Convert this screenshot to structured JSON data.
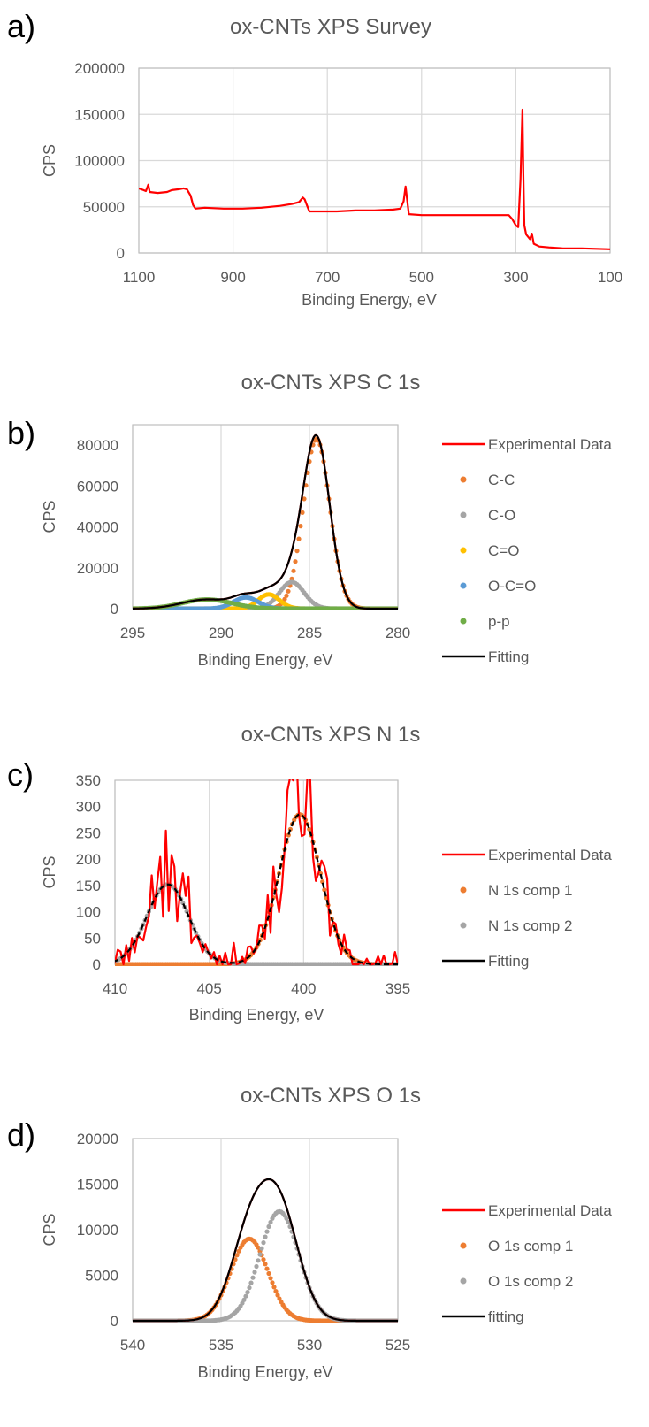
{
  "colors": {
    "experimental": "#ff0000",
    "comp_orange": "#ed7d31",
    "comp_gray": "#a5a5a5",
    "comp_yellow": "#ffc000",
    "comp_blue": "#5b9bd5",
    "comp_green": "#70ad47",
    "fitting": "#000000",
    "grid": "#d9d9d9",
    "text": "#595959"
  },
  "chart_data": [
    {
      "panel": "a)",
      "type": "line",
      "title": "ox-CNTs XPS Survey",
      "xlabel": "Binding Energy, eV",
      "ylabel": "CPS",
      "xlim": [
        1100,
        100
      ],
      "ylim": [
        0,
        200000
      ],
      "x_reversed": true,
      "xticks": [
        "1100",
        "900",
        "700",
        "500",
        "300",
        "100"
      ],
      "yticks": [
        "0",
        "50000",
        "100000",
        "150000",
        "200000"
      ],
      "grid": "both",
      "legend": "none",
      "series": [
        {
          "style": "line",
          "color_key": "experimental",
          "points": [
            [
              1100,
              70000
            ],
            [
              1090,
              68000
            ],
            [
              1085,
              67000
            ],
            [
              1080,
              74000
            ],
            [
              1077,
              66000
            ],
            [
              1060,
              65000
            ],
            [
              1040,
              66000
            ],
            [
              1030,
              68000
            ],
            [
              1015,
              69000
            ],
            [
              1005,
              70000
            ],
            [
              998,
              69000
            ],
            [
              990,
              62000
            ],
            [
              985,
              52000
            ],
            [
              980,
              48000
            ],
            [
              960,
              49000
            ],
            [
              920,
              48000
            ],
            [
              880,
              48000
            ],
            [
              840,
              49000
            ],
            [
              800,
              51000
            ],
            [
              775,
              53000
            ],
            [
              760,
              55000
            ],
            [
              752,
              60000
            ],
            [
              748,
              58000
            ],
            [
              742,
              50000
            ],
            [
              738,
              45000
            ],
            [
              720,
              45000
            ],
            [
              680,
              45000
            ],
            [
              640,
              46000
            ],
            [
              600,
              46000
            ],
            [
              560,
              47000
            ],
            [
              545,
              48000
            ],
            [
              538,
              56000
            ],
            [
              534,
              72000
            ],
            [
              530,
              55000
            ],
            [
              527,
              42000
            ],
            [
              500,
              41000
            ],
            [
              460,
              41000
            ],
            [
              420,
              41000
            ],
            [
              380,
              41000
            ],
            [
              340,
              41000
            ],
            [
              315,
              41000
            ],
            [
              308,
              37000
            ],
            [
              300,
              30000
            ],
            [
              295,
              28000
            ],
            [
              290,
              80000
            ],
            [
              286,
              155000
            ],
            [
              284,
              85000
            ],
            [
              282,
              30000
            ],
            [
              278,
              20000
            ],
            [
              270,
              15000
            ],
            [
              266,
              21000
            ],
            [
              262,
              10000
            ],
            [
              250,
              7000
            ],
            [
              230,
              6000
            ],
            [
              200,
              5000
            ],
            [
              160,
              5000
            ],
            [
              130,
              4500
            ],
            [
              100,
              4000
            ]
          ]
        }
      ]
    },
    {
      "panel": "b)",
      "type": "line",
      "title": "ox-CNTs XPS C 1s",
      "xlabel": "Binding Energy, eV",
      "ylabel": "CPS",
      "xlim": [
        295,
        280
      ],
      "ylim": [
        0,
        90000
      ],
      "x_reversed": true,
      "xticks": [
        "295",
        "290",
        "285",
        "280"
      ],
      "yticks": [
        "0",
        "20000",
        "40000",
        "60000",
        "80000"
      ],
      "grid": "vertical",
      "legend": "right",
      "series": [
        {
          "name": "Experimental Data",
          "style": "line",
          "color_key": "experimental",
          "peaks": [
            [
              284.6,
              83000,
              0.75
            ],
            [
              286.0,
              13000,
              0.7
            ],
            [
              287.3,
              7000,
              0.6
            ],
            [
              288.6,
              5500,
              0.7
            ],
            [
              290.8,
              4500,
              1.4
            ]
          ]
        },
        {
          "name": "C-C",
          "style": "dots",
          "color_key": "comp_orange",
          "peaks": [
            [
              284.6,
              83000,
              0.75
            ]
          ]
        },
        {
          "name": "C-O",
          "style": "dots",
          "color_key": "comp_gray",
          "peaks": [
            [
              286.0,
              13000,
              0.7
            ]
          ]
        },
        {
          "name": "C=O",
          "style": "dots",
          "color_key": "comp_yellow",
          "peaks": [
            [
              287.3,
              7000,
              0.6
            ]
          ]
        },
        {
          "name": "O-C=O",
          "style": "dots",
          "color_key": "comp_blue",
          "peaks": [
            [
              288.6,
              5500,
              0.7
            ]
          ]
        },
        {
          "name": "p-p",
          "style": "dots",
          "color_key": "comp_green",
          "peaks": [
            [
              290.8,
              4500,
              1.4
            ]
          ]
        },
        {
          "name": "Fitting",
          "style": "line",
          "color_key": "fitting",
          "peaks": [
            [
              284.6,
              83000,
              0.75
            ],
            [
              286.0,
              13000,
              0.7
            ],
            [
              287.3,
              7000,
              0.6
            ],
            [
              288.6,
              5500,
              0.7
            ],
            [
              290.8,
              4500,
              1.4
            ]
          ]
        }
      ]
    },
    {
      "panel": "c)",
      "type": "line",
      "title": "ox-CNTs XPS N 1s",
      "xlabel": "Binding Energy, eV",
      "ylabel": "CPS",
      "xlim": [
        410,
        395
      ],
      "ylim": [
        0,
        350
      ],
      "x_reversed": true,
      "xticks": [
        "410",
        "405",
        "400",
        "395"
      ],
      "yticks": [
        "0",
        "50",
        "100",
        "150",
        "200",
        "250",
        "300",
        "350"
      ],
      "grid": "vertical",
      "legend": "right",
      "series": [
        {
          "name": "Experimental Data",
          "style": "line",
          "color_key": "experimental",
          "peaks": [
            [
              400.2,
              285,
              1.1
            ],
            [
              407.2,
              152,
              1.1
            ]
          ],
          "noise": true
        },
        {
          "name": "N 1s comp 1",
          "style": "dots",
          "color_key": "comp_orange",
          "peaks": [
            [
              400.2,
              285,
              1.1
            ]
          ]
        },
        {
          "name": "N 1s comp 2",
          "style": "dots",
          "color_key": "comp_gray",
          "peaks": [
            [
              407.2,
              152,
              1.1
            ]
          ]
        },
        {
          "name": "Fitting",
          "style": "dashed",
          "color_key": "fitting",
          "peaks": [
            [
              400.2,
              285,
              1.1
            ],
            [
              407.2,
              152,
              1.1
            ]
          ]
        }
      ]
    },
    {
      "panel": "d)",
      "type": "line",
      "title": "ox-CNTs XPS O 1s",
      "xlabel": "Binding Energy, eV",
      "ylabel": "CPS",
      "xlim": [
        540,
        525
      ],
      "ylim": [
        0,
        20000
      ],
      "x_reversed": true,
      "xticks": [
        "540",
        "535",
        "530",
        "525"
      ],
      "yticks": [
        "0",
        "5000",
        "10000",
        "15000",
        "20000"
      ],
      "grid": "vertical",
      "legend": "right",
      "series": [
        {
          "name": "Experimental Data",
          "style": "line",
          "color_key": "experimental",
          "peaks": [
            [
              533.4,
              9000,
              1.05
            ],
            [
              531.7,
              12000,
              1.1
            ]
          ]
        },
        {
          "name": "O 1s comp 1",
          "style": "dots",
          "color_key": "comp_orange",
          "peaks": [
            [
              533.4,
              9000,
              1.05
            ]
          ]
        },
        {
          "name": "O 1s comp 2",
          "style": "dots",
          "color_key": "comp_gray",
          "peaks": [
            [
              531.7,
              12000,
              1.1
            ]
          ]
        },
        {
          "name": "fitting",
          "style": "line",
          "color_key": "fitting",
          "peaks": [
            [
              533.4,
              9000,
              1.05
            ],
            [
              531.7,
              12000,
              1.1
            ]
          ]
        }
      ]
    }
  ]
}
